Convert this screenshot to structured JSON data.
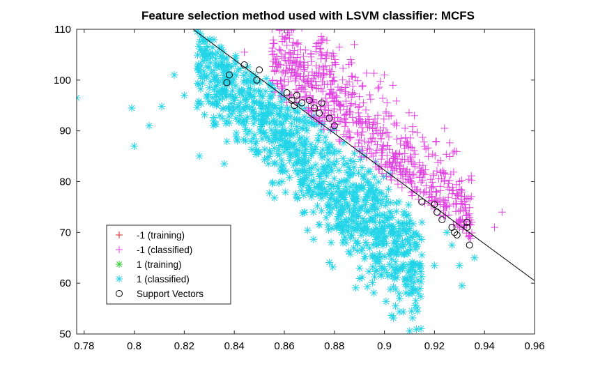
{
  "chart_data": {
    "type": "scatter",
    "title": "Feature selection method used with LSVM classifier: MCFS",
    "xlabel": "",
    "ylabel": "",
    "xlim": [
      0.777,
      0.96
    ],
    "ylim": [
      50,
      110
    ],
    "x_ticks": [
      "0.78",
      "0.8",
      "0.82",
      "0.84",
      "0.86",
      "0.88",
      "0.9",
      "0.92",
      "0.94",
      "0.96"
    ],
    "y_ticks": [
      "50",
      "60",
      "70",
      "80",
      "90",
      "100",
      "110"
    ],
    "grid": false,
    "legend_position": "bottom-left",
    "decision_boundary": {
      "x1": 0.8235,
      "y1": 110,
      "x2": 0.96,
      "y2": 60.5
    },
    "series": [
      {
        "name": "-1 (training)",
        "marker": "+",
        "color": "#d62728",
        "points": []
      },
      {
        "name": "-1 (classified)",
        "marker": "+",
        "color": "#e040e0",
        "cluster": {
          "x_range": [
            0.855,
            0.935
          ],
          "center": [
            0.895,
            88
          ],
          "slope": -470,
          "spread": 5.5,
          "count": 900
        },
        "points": [
          [
            0.844,
            105.5
          ],
          [
            0.865,
            107.2
          ],
          [
            0.864,
            105.8
          ],
          [
            0.877,
            107.8
          ],
          [
            0.882,
            106.5
          ],
          [
            0.888,
            107.0
          ],
          [
            0.9,
            101.0
          ],
          [
            0.912,
            93.0
          ],
          [
            0.924,
            90.5
          ],
          [
            0.928,
            86.0
          ],
          [
            0.93,
            80.0
          ],
          [
            0.932,
            77.0
          ],
          [
            0.934,
            73.0
          ],
          [
            0.944,
            71.0
          ],
          [
            0.947,
            74.0
          ],
          [
            0.868,
            103.5
          ],
          [
            0.875,
            104.8
          ],
          [
            0.858,
            103.0
          ]
        ]
      },
      {
        "name": "1 (training)",
        "marker": "*",
        "color": "#33cc33",
        "points": []
      },
      {
        "name": "1 (classified)",
        "marker": "*",
        "color": "#22d4e8",
        "cluster": {
          "x_range": [
            0.825,
            0.915
          ],
          "center": [
            0.87,
            83.5
          ],
          "slope": -470,
          "spread": 5.5,
          "count": 1150
        },
        "points": [
          [
            0.777,
            96.5
          ],
          [
            0.799,
            94.5
          ],
          [
            0.8,
            87.0
          ],
          [
            0.806,
            91.0
          ],
          [
            0.811,
            94.8
          ],
          [
            0.816,
            101.0
          ],
          [
            0.82,
            97.0
          ],
          [
            0.826,
            101.5
          ],
          [
            0.83,
            98.5
          ],
          [
            0.836,
            83.5
          ],
          [
            0.868,
            74.0
          ],
          [
            0.885,
            72.0
          ],
          [
            0.9,
            69.0
          ],
          [
            0.905,
            66.0
          ],
          [
            0.91,
            68.0
          ],
          [
            0.92,
            63.5
          ],
          [
            0.927,
            67.5
          ],
          [
            0.93,
            63.5
          ],
          [
            0.931,
            59.5
          ],
          [
            0.936,
            65.0
          ],
          [
            0.925,
            70.0
          ],
          [
            0.915,
            72.0
          ]
        ]
      },
      {
        "name": "Support Vectors",
        "marker": "o",
        "color": "#000000",
        "points": [
          [
            0.837,
            99.5
          ],
          [
            0.838,
            101.0
          ],
          [
            0.844,
            103.0
          ],
          [
            0.85,
            102.0
          ],
          [
            0.849,
            100.0
          ],
          [
            0.861,
            97.5
          ],
          [
            0.863,
            96.0
          ],
          [
            0.864,
            95.0
          ],
          [
            0.865,
            97.0
          ],
          [
            0.867,
            95.5
          ],
          [
            0.87,
            96.0
          ],
          [
            0.872,
            94.5
          ],
          [
            0.874,
            93.5
          ],
          [
            0.875,
            95.5
          ],
          [
            0.878,
            92.5
          ],
          [
            0.88,
            91.0
          ],
          [
            0.915,
            76.0
          ],
          [
            0.92,
            75.5
          ],
          [
            0.921,
            74.0
          ],
          [
            0.923,
            72.5
          ],
          [
            0.927,
            71.0
          ],
          [
            0.928,
            70.0
          ],
          [
            0.929,
            69.5
          ],
          [
            0.933,
            72.0
          ],
          [
            0.934,
            67.5
          ],
          [
            0.933,
            71.0
          ]
        ]
      }
    ]
  }
}
